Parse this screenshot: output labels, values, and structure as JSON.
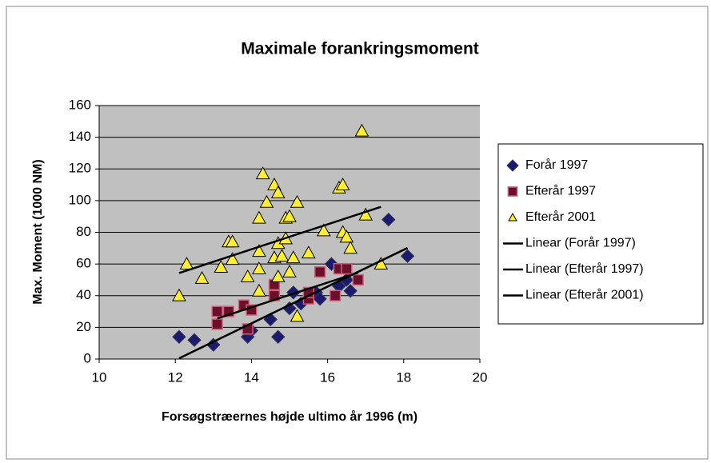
{
  "chart_data": {
    "type": "scatter",
    "title": "Maximale forankringsmoment",
    "x_label": "Forsøgstræernes højde ultimo år 1996 (m)",
    "y_label": "Max. Moment (1000 NM)",
    "xlim": [
      10,
      20
    ],
    "xticks": [
      10,
      12,
      14,
      16,
      18,
      20
    ],
    "ylim": [
      0,
      160
    ],
    "yticks": [
      0,
      20,
      40,
      60,
      80,
      100,
      120,
      140,
      160
    ],
    "grid": true,
    "legend": "right",
    "series": [
      {
        "name": "Forår 1997",
        "marker": "diamond",
        "color": "#1a1a6e",
        "trendline_name": "Linear (Forår 1997)",
        "x": [
          12.1,
          12.5,
          13.0,
          13.9,
          14.0,
          14.5,
          14.7,
          15.0,
          15.1,
          15.3,
          15.7,
          15.8,
          16.1,
          16.3,
          16.5,
          16.6,
          17.6,
          18.1
        ],
        "y": [
          14,
          12,
          9,
          14,
          18,
          25,
          14,
          32,
          42,
          35,
          42,
          38,
          60,
          46,
          50,
          43,
          88,
          65
        ]
      },
      {
        "name": "Efterår 1997",
        "marker": "square",
        "color": "#6b0f2a",
        "trendline_name": "Linear (Efterår 1997)",
        "x": [
          13.1,
          13.1,
          13.4,
          13.8,
          13.9,
          14.0,
          14.6,
          14.6,
          15.5,
          15.5,
          15.8,
          16.2,
          16.3,
          16.5,
          16.8
        ],
        "y": [
          22,
          30,
          30,
          34,
          19,
          31,
          40,
          47,
          38,
          42,
          55,
          40,
          57,
          57,
          50
        ]
      },
      {
        "name": "Efterår 2001",
        "marker": "triangle",
        "color": "#ffee33",
        "trendline_name": "Linear (Efterår 2001)",
        "x": [
          12.1,
          12.3,
          12.7,
          13.2,
          13.4,
          13.5,
          13.5,
          13.9,
          14.2,
          14.2,
          14.2,
          14.2,
          14.3,
          14.4,
          14.6,
          14.6,
          14.7,
          14.7,
          14.7,
          14.8,
          14.9,
          14.9,
          15.0,
          15.0,
          15.1,
          15.2,
          15.2,
          15.5,
          15.9,
          16.3,
          16.4,
          16.4,
          16.5,
          16.6,
          16.9,
          17.0,
          17.4
        ],
        "y": [
          40,
          60,
          51,
          58,
          74,
          74,
          63,
          52,
          43,
          57,
          68,
          89,
          117,
          99,
          110,
          64,
          105,
          73,
          52,
          65,
          89,
          76,
          90,
          55,
          64,
          99,
          27,
          67,
          81,
          108,
          110,
          80,
          77,
          70,
          144,
          91,
          60
        ]
      }
    ]
  }
}
